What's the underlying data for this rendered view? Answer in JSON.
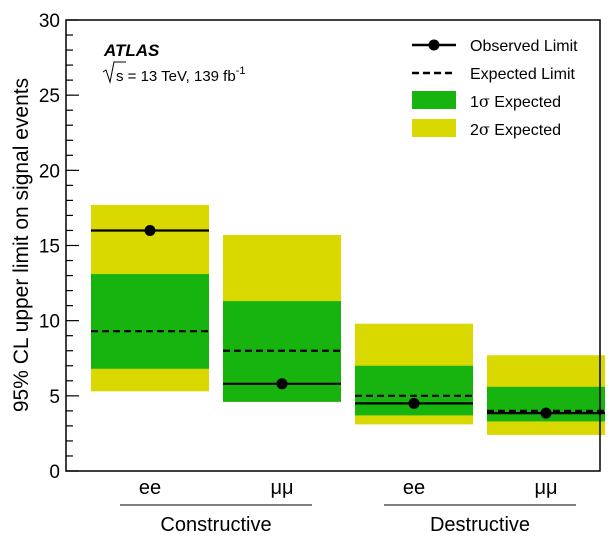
{
  "chart_data": {
    "type": "bar",
    "ylabel": "95% CL upper limit on signal events",
    "ylim": [
      0,
      30
    ],
    "yticks": [
      0,
      5,
      10,
      15,
      20,
      25,
      30
    ],
    "experiment": "ATLAS",
    "energy_prefix": "s",
    "energy_text": " = 13 TeV, 139 fb",
    "energy_sup": "-1",
    "categories": [
      {
        "label": "ee",
        "group": "Constructive",
        "observed": 16.0,
        "expected": 9.3,
        "sigma1": [
          6.8,
          13.1
        ],
        "sigma2": [
          5.3,
          17.7
        ]
      },
      {
        "label": "μμ",
        "group": "Constructive",
        "observed": 5.8,
        "expected": 8.0,
        "sigma1": [
          4.6,
          11.3
        ],
        "sigma2": [
          4.6,
          15.7
        ]
      },
      {
        "label": "ee",
        "group": "Destructive",
        "observed": 4.5,
        "expected": 5.0,
        "sigma1": [
          3.7,
          7.0
        ],
        "sigma2": [
          3.1,
          9.8
        ]
      },
      {
        "label": "μμ",
        "group": "Destructive",
        "observed": 3.85,
        "expected": 4.0,
        "sigma1": [
          3.3,
          5.6
        ],
        "sigma2": [
          2.4,
          7.7
        ]
      }
    ],
    "groups": [
      "Constructive",
      "Destructive"
    ],
    "legend": {
      "position": "top-right",
      "observed": "Observed Limit",
      "expected": "Expected Limit",
      "sigma1_prefix": "1",
      "sigma2_prefix": "2",
      "sigma_symbol": "σ",
      "sigma_suffix": " Expected"
    },
    "colors": {
      "sigma1": "#17b30e",
      "sigma2": "#d9d900",
      "line": "#000000"
    }
  }
}
